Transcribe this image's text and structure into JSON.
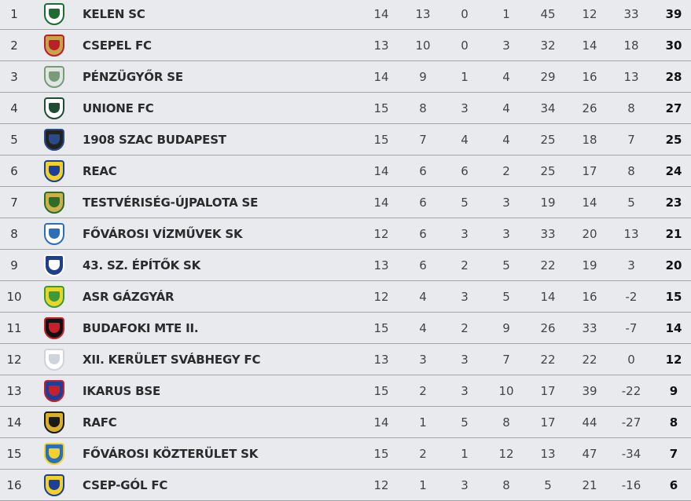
{
  "standings": [
    {
      "rank": "1",
      "team": "KELEN SC",
      "played": "14",
      "won": "13",
      "drawn": "0",
      "lost": "1",
      "gf": "45",
      "ga": "12",
      "gd": "33",
      "points": "39",
      "logo_colors": [
        "#ffffff",
        "#1e6b33"
      ]
    },
    {
      "rank": "2",
      "team": "CSEPEL FC",
      "played": "13",
      "won": "10",
      "drawn": "0",
      "lost": "3",
      "gf": "32",
      "ga": "14",
      "gd": "18",
      "points": "30",
      "logo_colors": [
        "#c9a24a",
        "#b8202a"
      ]
    },
    {
      "rank": "3",
      "team": "PÉNZÜGYŐR SE",
      "played": "14",
      "won": "9",
      "drawn": "1",
      "lost": "4",
      "gf": "29",
      "ga": "16",
      "gd": "13",
      "points": "28",
      "logo_colors": [
        "#dfe6df",
        "#7a9a7c"
      ]
    },
    {
      "rank": "4",
      "team": "UNIONE FC",
      "played": "15",
      "won": "8",
      "drawn": "3",
      "lost": "4",
      "gf": "34",
      "ga": "26",
      "gd": "8",
      "points": "27",
      "logo_colors": [
        "#ffffff",
        "#1f4d33"
      ]
    },
    {
      "rank": "5",
      "team": "1908 SZAC BUDAPEST",
      "played": "15",
      "won": "7",
      "drawn": "4",
      "lost": "4",
      "gf": "25",
      "ga": "18",
      "gd": "7",
      "points": "25",
      "logo_colors": [
        "#222222",
        "#2a4a8a"
      ]
    },
    {
      "rank": "6",
      "team": "REAC",
      "played": "14",
      "won": "6",
      "drawn": "6",
      "lost": "2",
      "gf": "25",
      "ga": "17",
      "gd": "8",
      "points": "24",
      "logo_colors": [
        "#f2d22a",
        "#1d3f9a"
      ]
    },
    {
      "rank": "7",
      "team": "TESTVÉRISÉG-ÚJPALOTA SE",
      "played": "14",
      "won": "6",
      "drawn": "5",
      "lost": "3",
      "gf": "19",
      "ga": "14",
      "gd": "5",
      "points": "23",
      "logo_colors": [
        "#c9b24a",
        "#2f6b2a"
      ]
    },
    {
      "rank": "8",
      "team": "FŐVÁROSI VÍZMŰVEK SK",
      "played": "12",
      "won": "6",
      "drawn": "3",
      "lost": "3",
      "gf": "33",
      "ga": "20",
      "gd": "13",
      "points": "21",
      "logo_colors": [
        "#ffffff",
        "#2a6fb8"
      ]
    },
    {
      "rank": "9",
      "team": "43. SZ. ÉPÍTŐK SK",
      "played": "13",
      "won": "6",
      "drawn": "2",
      "lost": "5",
      "gf": "22",
      "ga": "19",
      "gd": "3",
      "points": "20",
      "logo_colors": [
        "#1f3f8a",
        "#ffffff"
      ]
    },
    {
      "rank": "10",
      "team": "ASR GÁZGYÁR",
      "played": "12",
      "won": "4",
      "drawn": "3",
      "lost": "5",
      "gf": "14",
      "ga": "16",
      "gd": "-2",
      "points": "15",
      "logo_colors": [
        "#e8d52a",
        "#3d9a3a"
      ]
    },
    {
      "rank": "11",
      "team": "BUDAFOKI MTE II.",
      "played": "15",
      "won": "4",
      "drawn": "2",
      "lost": "9",
      "gf": "26",
      "ga": "33",
      "gd": "-7",
      "points": "14",
      "logo_colors": [
        "#111111",
        "#c8202a"
      ]
    },
    {
      "rank": "12",
      "team": "XII. KERÜLET SVÁBHEGY FC",
      "played": "13",
      "won": "3",
      "drawn": "3",
      "lost": "7",
      "gf": "22",
      "ga": "22",
      "gd": "0",
      "points": "12",
      "logo_colors": [
        "#ffffff",
        "#cfd3da"
      ]
    },
    {
      "rank": "13",
      "team": "IKARUS BSE",
      "played": "15",
      "won": "2",
      "drawn": "3",
      "lost": "10",
      "gf": "17",
      "ga": "39",
      "gd": "-22",
      "points": "9",
      "logo_colors": [
        "#1d3f9a",
        "#c8202a"
      ]
    },
    {
      "rank": "14",
      "team": "RAFC",
      "played": "14",
      "won": "1",
      "drawn": "5",
      "lost": "8",
      "gf": "17",
      "ga": "44",
      "gd": "-27",
      "points": "8",
      "logo_colors": [
        "#d8b02a",
        "#1a1a1a"
      ]
    },
    {
      "rank": "15",
      "team": "FŐVÁROSI KÖZTERÜLET SK",
      "played": "15",
      "won": "2",
      "drawn": "1",
      "lost": "12",
      "gf": "13",
      "ga": "47",
      "gd": "-34",
      "points": "7",
      "logo_colors": [
        "#2a6fb8",
        "#f2d22a"
      ]
    },
    {
      "rank": "16",
      "team": "CSEP-GÓL FC",
      "played": "12",
      "won": "1",
      "drawn": "3",
      "lost": "8",
      "gf": "5",
      "ga": "21",
      "gd": "-16",
      "points": "6",
      "logo_colors": [
        "#f2d22a",
        "#1d3f9a"
      ]
    }
  ]
}
